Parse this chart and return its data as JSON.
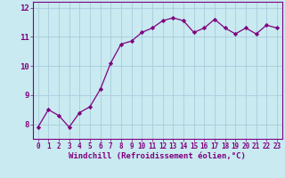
{
  "x": [
    0,
    1,
    2,
    3,
    4,
    5,
    6,
    7,
    8,
    9,
    10,
    11,
    12,
    13,
    14,
    15,
    16,
    17,
    18,
    19,
    20,
    21,
    22,
    23
  ],
  "y": [
    7.9,
    8.5,
    8.3,
    7.9,
    8.4,
    8.6,
    9.2,
    10.1,
    10.75,
    10.85,
    11.15,
    11.3,
    11.55,
    11.65,
    11.55,
    11.15,
    11.3,
    11.6,
    11.3,
    11.1,
    11.3,
    11.1,
    11.4,
    11.3
  ],
  "line_color": "#800080",
  "marker": "D",
  "marker_size": 2.2,
  "bg_color": "#c8eaf0",
  "grid_color": "#aaccdd",
  "xlabel": "Windchill (Refroidissement éolien,°C)",
  "ylim": [
    7.5,
    12.2
  ],
  "yticks": [
    8,
    9,
    10,
    11,
    12
  ],
  "xticks": [
    0,
    1,
    2,
    3,
    4,
    5,
    6,
    7,
    8,
    9,
    10,
    11,
    12,
    13,
    14,
    15,
    16,
    17,
    18,
    19,
    20,
    21,
    22,
    23
  ],
  "xtick_labels": [
    "0",
    "1",
    "2",
    "3",
    "4",
    "5",
    "6",
    "7",
    "8",
    "9",
    "10",
    "11",
    "12",
    "13",
    "14",
    "15",
    "16",
    "17",
    "18",
    "19",
    "20",
    "21",
    "22",
    "23"
  ],
  "tick_color": "#800080",
  "label_fontsize": 6.5,
  "tick_fontsize": 5.5,
  "spine_color": "#800080",
  "line_width": 0.9
}
